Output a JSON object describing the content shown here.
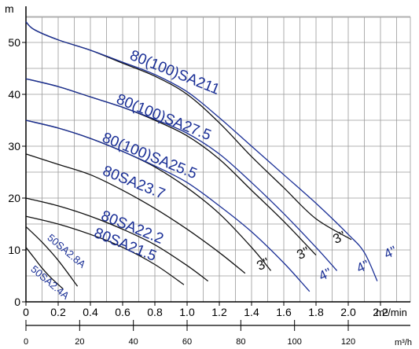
{
  "chart_data": {
    "type": "line",
    "ylabel": "m",
    "xlabel": "m³/min",
    "x2label": "m³/h",
    "xlim": [
      0,
      2.3
    ],
    "ylim": [
      0,
      55
    ],
    "x_ticks": [
      "0",
      "0.2",
      "0.4",
      "0.6",
      "0.8",
      "1.0",
      "1.2",
      "1.4",
      "1.6",
      "1.8",
      "2.0",
      "2.2"
    ],
    "y_ticks": [
      "0",
      "10",
      "20",
      "30",
      "40",
      "50"
    ],
    "x2_ticks": [
      "0",
      "20",
      "40",
      "60",
      "80",
      "100",
      "120"
    ],
    "x2_tick_values": [
      0,
      20,
      40,
      60,
      80,
      100,
      120
    ],
    "grid": true,
    "colors": {
      "black": "#111111",
      "blue": "#1a2f96"
    },
    "series": [
      {
        "name": "80(100)SA211",
        "variants": [
          {
            "suffix": "3\"",
            "color": "#111111",
            "x": [
              0,
              0.05,
              0.2,
              0.4,
              0.6,
              0.8,
              1.0,
              1.2,
              1.4,
              1.6,
              1.8,
              2.02
            ],
            "y": [
              54,
              52.5,
              50.5,
              48.5,
              46,
              43.5,
              40,
              34.5,
              28,
              22,
              16,
              12
            ]
          },
          {
            "suffix": "4\"",
            "color": "#1a2f96",
            "x": [
              0,
              0.05,
              0.2,
              0.4,
              0.6,
              0.8,
              1.0,
              1.2,
              1.4,
              1.6,
              1.8,
              2.0,
              2.1,
              2.18
            ],
            "y": [
              54,
              52.5,
              50.5,
              48.5,
              46.2,
              43.8,
              40.5,
              35.5,
              30,
              24.5,
              19,
              13,
              9.5,
              4
            ]
          }
        ]
      },
      {
        "name": "80(100)SA27.5",
        "variants": [
          {
            "suffix": "3\"",
            "color": "#111111",
            "x": [
              0,
              0.2,
              0.4,
              0.6,
              0.8,
              1.0,
              1.2,
              1.4,
              1.6,
              1.8
            ],
            "y": [
              43,
              41.5,
              39.5,
              37.5,
              35,
              32,
              27.5,
              21.5,
              15.5,
              9
            ]
          },
          {
            "suffix": "4\"",
            "color": "#1a2f96",
            "x": [
              0,
              0.2,
              0.4,
              0.6,
              0.8,
              1.0,
              1.2,
              1.4,
              1.6,
              1.8,
              1.93
            ],
            "y": [
              43,
              41.5,
              39.5,
              37.5,
              35.2,
              32.5,
              28.5,
              23,
              17,
              10.5,
              6
            ]
          }
        ]
      },
      {
        "name": "80(100)SA25.5",
        "variants": [
          {
            "suffix": "3\"",
            "color": "#111111",
            "x": [
              0,
              0.2,
              0.4,
              0.6,
              0.8,
              1.0,
              1.2,
              1.4,
              1.52
            ],
            "y": [
              35,
              33.5,
              31.5,
              29,
              26,
              22,
              17,
              10.5,
              6
            ]
          },
          {
            "suffix": "4\"",
            "color": "#1a2f96",
            "x": [
              0,
              0.2,
              0.4,
              0.6,
              0.8,
              1.0,
              1.2,
              1.4,
              1.6,
              1.76
            ],
            "y": [
              35,
              33.5,
              31.5,
              29,
              26.2,
              23,
              18.5,
              13.5,
              7.5,
              2
            ]
          }
        ]
      },
      {
        "name": "80SA23.7",
        "variants": [
          {
            "suffix": "",
            "color": "#111111",
            "x": [
              0,
              0.2,
              0.4,
              0.6,
              0.8,
              1.0,
              1.2,
              1.36
            ],
            "y": [
              28.5,
              26.5,
              24.5,
              21.5,
              18,
              14,
              9.5,
              5.5
            ]
          }
        ]
      },
      {
        "name": "80SA22.2",
        "variants": [
          {
            "suffix": "",
            "color": "#111111",
            "x": [
              0,
              0.2,
              0.4,
              0.6,
              0.8,
              1.0,
              1.13
            ],
            "y": [
              20,
              18.5,
              16.5,
              14,
              11,
              7,
              4
            ]
          }
        ]
      },
      {
        "name": "80SA21.5",
        "variants": [
          {
            "suffix": "",
            "color": "#111111",
            "x": [
              0,
              0.2,
              0.4,
              0.6,
              0.8,
              0.98
            ],
            "y": [
              16.5,
              15,
              13,
              10.5,
              7.2,
              3.3
            ]
          }
        ]
      },
      {
        "name": "50SA2.8A",
        "variants": [
          {
            "suffix": "",
            "color": "#111111",
            "x": [
              0,
              0.1,
              0.2,
              0.32
            ],
            "y": [
              14.5,
              11.5,
              8,
              3
            ]
          }
        ]
      },
      {
        "name": "50SA2.4A",
        "variants": [
          {
            "suffix": "",
            "color": "#111111",
            "x": [
              0,
              0.05,
              0.1,
              0.15,
              0.23
            ],
            "y": [
              10.5,
              8.5,
              6.5,
              4.8,
              2.5
            ]
          }
        ]
      }
    ]
  }
}
